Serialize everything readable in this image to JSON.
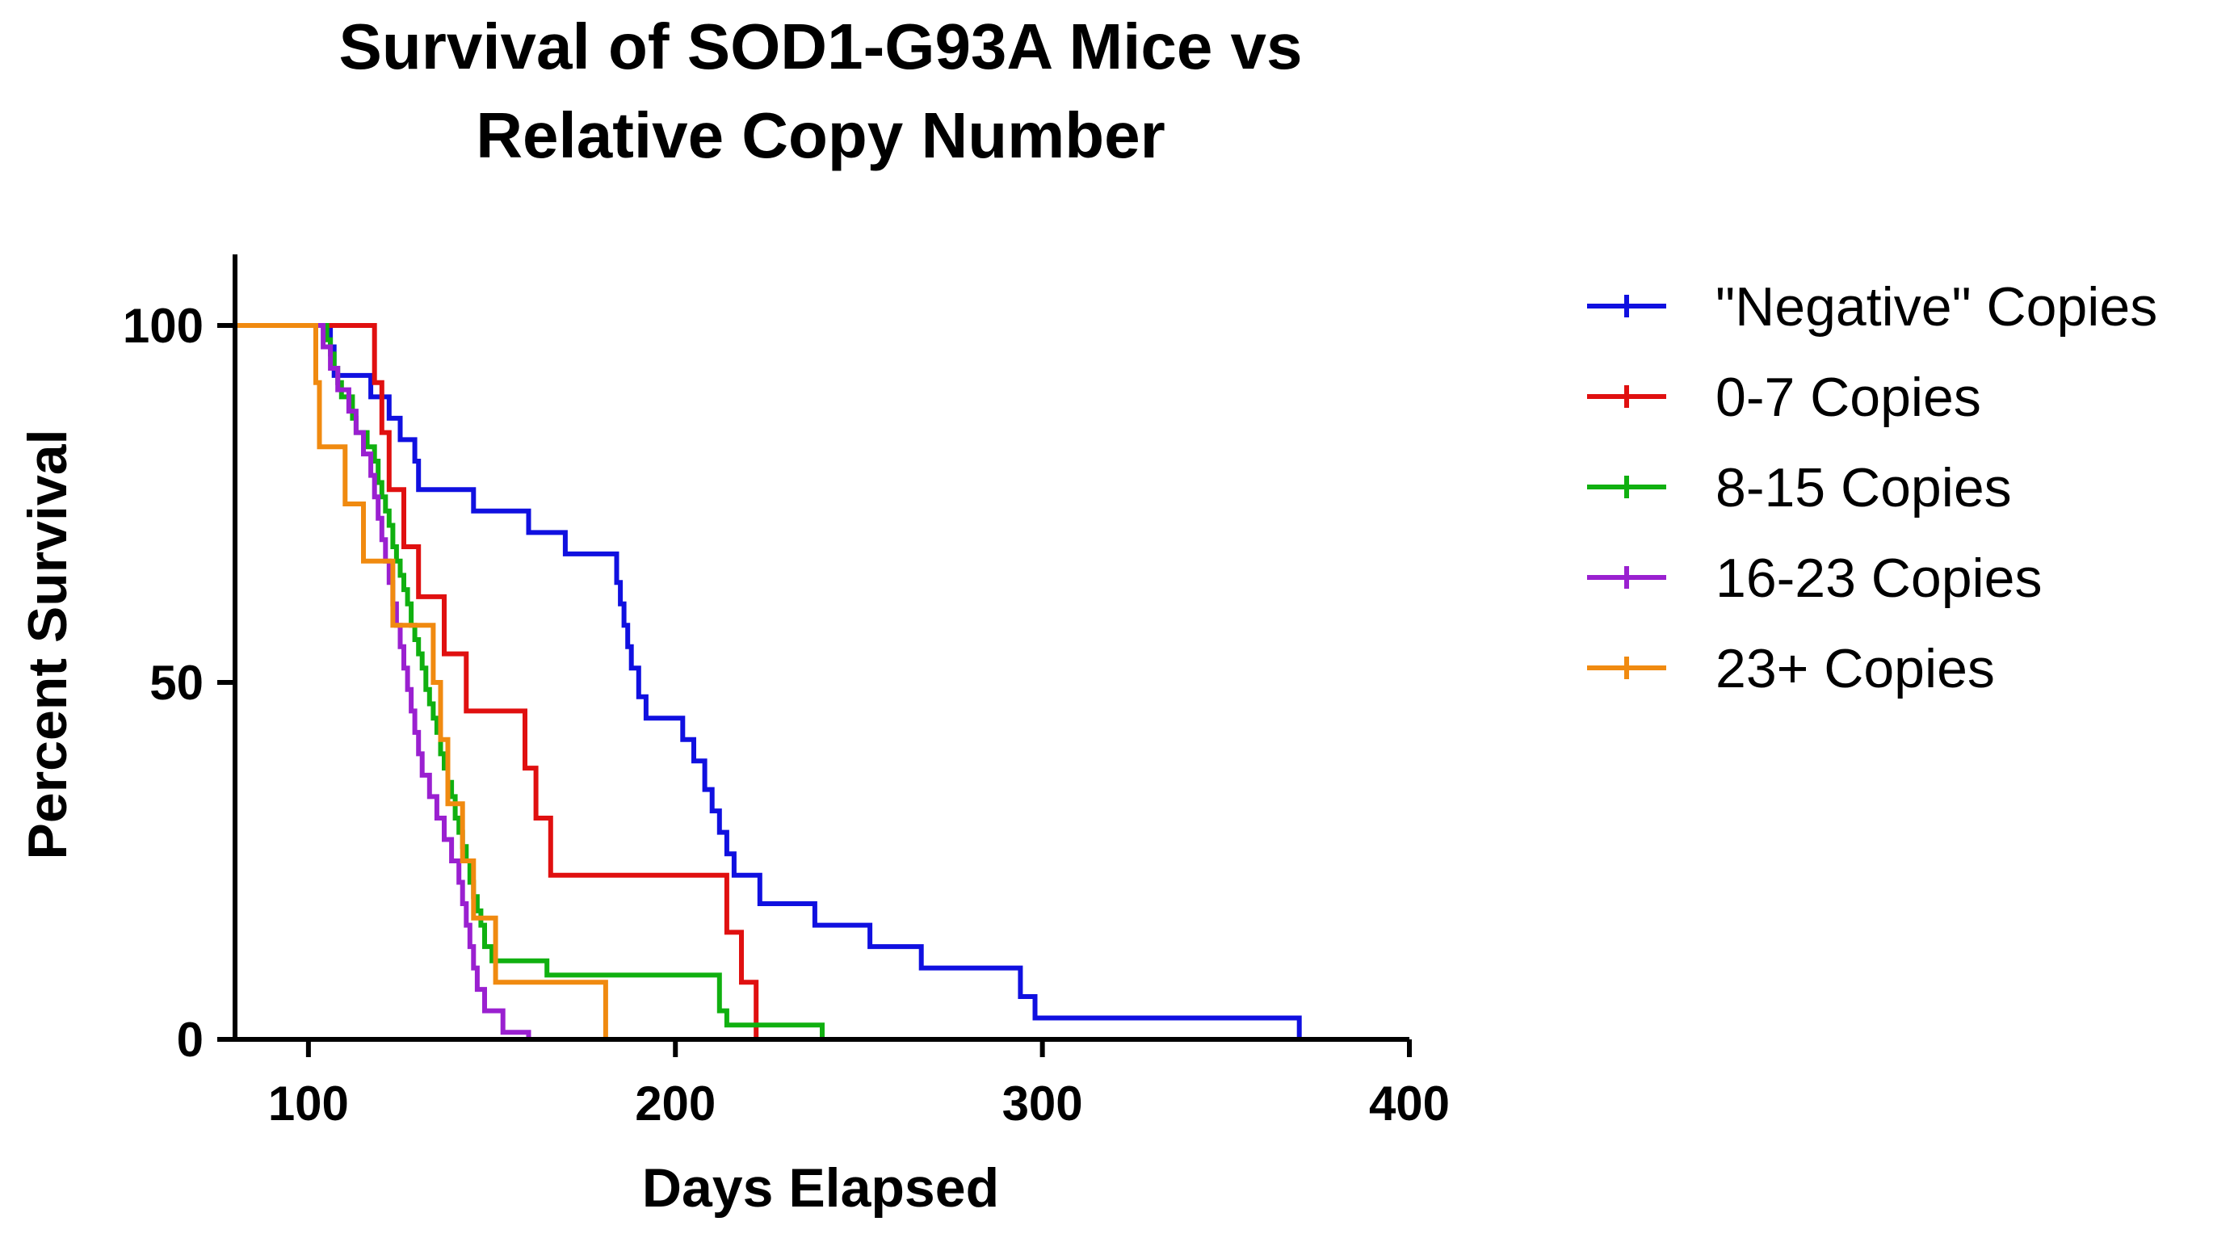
{
  "chart_data": {
    "type": "line",
    "step": "kaplan-meier",
    "title_lines": [
      "Survival of SOD1-G93A Mice vs",
      "Relative  Copy Number"
    ],
    "xlabel": "Days Elapsed",
    "ylabel": "Percent Survival",
    "xlim": [
      80,
      400
    ],
    "ylim": [
      0,
      110
    ],
    "xticks": [
      100,
      200,
      300,
      400
    ],
    "xtick_labels": [
      "100",
      "200",
      "300",
      "400"
    ],
    "yticks": [
      0,
      50,
      100
    ],
    "ytick_labels": [
      "0",
      "50",
      "100"
    ],
    "grid": false,
    "legend_position": "right",
    "series": [
      {
        "name": "\"Negative\" Copies",
        "color": "#1010e0",
        "points": [
          [
            80,
            100
          ],
          [
            106,
            100
          ],
          [
            106,
            97
          ],
          [
            107,
            97
          ],
          [
            107,
            93
          ],
          [
            117,
            93
          ],
          [
            117,
            90
          ],
          [
            122,
            90
          ],
          [
            122,
            87
          ],
          [
            125,
            87
          ],
          [
            125,
            84
          ],
          [
            129,
            84
          ],
          [
            129,
            81
          ],
          [
            130,
            81
          ],
          [
            130,
            77
          ],
          [
            145,
            77
          ],
          [
            145,
            74
          ],
          [
            160,
            74
          ],
          [
            160,
            71
          ],
          [
            170,
            71
          ],
          [
            170,
            68
          ],
          [
            184,
            68
          ],
          [
            184,
            64
          ],
          [
            185,
            64
          ],
          [
            185,
            61
          ],
          [
            186,
            61
          ],
          [
            186,
            58
          ],
          [
            187,
            58
          ],
          [
            187,
            55
          ],
          [
            188,
            55
          ],
          [
            188,
            52
          ],
          [
            190,
            52
          ],
          [
            190,
            48
          ],
          [
            192,
            48
          ],
          [
            192,
            45
          ],
          [
            202,
            45
          ],
          [
            202,
            42
          ],
          [
            205,
            42
          ],
          [
            205,
            39
          ],
          [
            208,
            39
          ],
          [
            208,
            35
          ],
          [
            210,
            35
          ],
          [
            210,
            32
          ],
          [
            212,
            32
          ],
          [
            212,
            29
          ],
          [
            214,
            29
          ],
          [
            214,
            26
          ],
          [
            216,
            26
          ],
          [
            216,
            23
          ],
          [
            223,
            23
          ],
          [
            223,
            19
          ],
          [
            238,
            19
          ],
          [
            238,
            16
          ],
          [
            253,
            16
          ],
          [
            253,
            13
          ],
          [
            267,
            13
          ],
          [
            267,
            10
          ],
          [
            294,
            10
          ],
          [
            294,
            6
          ],
          [
            298,
            6
          ],
          [
            298,
            3
          ],
          [
            370,
            3
          ],
          [
            370,
            0
          ]
        ]
      },
      {
        "name": "0-7 Copies",
        "color": "#e01010",
        "points": [
          [
            80,
            100
          ],
          [
            118,
            100
          ],
          [
            118,
            92
          ],
          [
            120,
            92
          ],
          [
            120,
            85
          ],
          [
            122,
            85
          ],
          [
            122,
            77
          ],
          [
            126,
            77
          ],
          [
            126,
            69
          ],
          [
            130,
            69
          ],
          [
            130,
            62
          ],
          [
            137,
            62
          ],
          [
            137,
            54
          ],
          [
            143,
            54
          ],
          [
            143,
            46
          ],
          [
            159,
            46
          ],
          [
            159,
            38
          ],
          [
            162,
            38
          ],
          [
            162,
            31
          ],
          [
            166,
            31
          ],
          [
            166,
            23
          ],
          [
            214,
            23
          ],
          [
            214,
            15
          ],
          [
            218,
            15
          ],
          [
            218,
            8
          ],
          [
            222,
            8
          ],
          [
            222,
            0
          ]
        ]
      },
      {
        "name": "8-15 Copies",
        "color": "#10b010",
        "points": [
          [
            80,
            100
          ],
          [
            105,
            100
          ],
          [
            105,
            98
          ],
          [
            106,
            98
          ],
          [
            106,
            96
          ],
          [
            107,
            96
          ],
          [
            107,
            94
          ],
          [
            108,
            94
          ],
          [
            108,
            92
          ],
          [
            109,
            92
          ],
          [
            109,
            90
          ],
          [
            112,
            90
          ],
          [
            112,
            87
          ],
          [
            113,
            87
          ],
          [
            113,
            85
          ],
          [
            116,
            85
          ],
          [
            116,
            83
          ],
          [
            118,
            83
          ],
          [
            118,
            81
          ],
          [
            119,
            81
          ],
          [
            119,
            78
          ],
          [
            120,
            78
          ],
          [
            120,
            76
          ],
          [
            121,
            76
          ],
          [
            121,
            74
          ],
          [
            122,
            74
          ],
          [
            122,
            72
          ],
          [
            123,
            72
          ],
          [
            123,
            69
          ],
          [
            124,
            69
          ],
          [
            124,
            67
          ],
          [
            125,
            67
          ],
          [
            125,
            65
          ],
          [
            126,
            65
          ],
          [
            126,
            63
          ],
          [
            127,
            63
          ],
          [
            127,
            61
          ],
          [
            128,
            61
          ],
          [
            128,
            58
          ],
          [
            129,
            58
          ],
          [
            129,
            56
          ],
          [
            130,
            56
          ],
          [
            130,
            54
          ],
          [
            131,
            54
          ],
          [
            131,
            52
          ],
          [
            132,
            52
          ],
          [
            132,
            49
          ],
          [
            133,
            49
          ],
          [
            133,
            47
          ],
          [
            134,
            47
          ],
          [
            134,
            45
          ],
          [
            135,
            45
          ],
          [
            135,
            43
          ],
          [
            136,
            43
          ],
          [
            136,
            40
          ],
          [
            137,
            40
          ],
          [
            137,
            38
          ],
          [
            138,
            38
          ],
          [
            138,
            36
          ],
          [
            139,
            36
          ],
          [
            139,
            34
          ],
          [
            140,
            34
          ],
          [
            140,
            31
          ],
          [
            141,
            31
          ],
          [
            141,
            29
          ],
          [
            142,
            29
          ],
          [
            142,
            27
          ],
          [
            143,
            27
          ],
          [
            143,
            25
          ],
          [
            144,
            25
          ],
          [
            144,
            22
          ],
          [
            145,
            22
          ],
          [
            145,
            20
          ],
          [
            146,
            20
          ],
          [
            146,
            18
          ],
          [
            147,
            18
          ],
          [
            147,
            16
          ],
          [
            148,
            16
          ],
          [
            148,
            13
          ],
          [
            150,
            13
          ],
          [
            150,
            11
          ],
          [
            165,
            11
          ],
          [
            165,
            9
          ],
          [
            212,
            9
          ],
          [
            212,
            4
          ],
          [
            214,
            4
          ],
          [
            214,
            2
          ],
          [
            240,
            2
          ],
          [
            240,
            0
          ]
        ]
      },
      {
        "name": "16-23 Copies",
        "color": "#9a20d0",
        "points": [
          [
            80,
            100
          ],
          [
            104,
            100
          ],
          [
            104,
            97
          ],
          [
            106,
            97
          ],
          [
            106,
            94
          ],
          [
            108,
            94
          ],
          [
            108,
            91
          ],
          [
            111,
            91
          ],
          [
            111,
            88
          ],
          [
            113,
            88
          ],
          [
            113,
            85
          ],
          [
            115,
            85
          ],
          [
            115,
            82
          ],
          [
            117,
            82
          ],
          [
            117,
            79
          ],
          [
            118,
            79
          ],
          [
            118,
            76
          ],
          [
            119,
            76
          ],
          [
            119,
            73
          ],
          [
            120,
            73
          ],
          [
            120,
            70
          ],
          [
            121,
            70
          ],
          [
            121,
            67
          ],
          [
            122,
            67
          ],
          [
            122,
            64
          ],
          [
            123,
            64
          ],
          [
            123,
            61
          ],
          [
            124,
            61
          ],
          [
            124,
            58
          ],
          [
            125,
            58
          ],
          [
            125,
            55
          ],
          [
            126,
            55
          ],
          [
            126,
            52
          ],
          [
            127,
            52
          ],
          [
            127,
            49
          ],
          [
            128,
            49
          ],
          [
            128,
            46
          ],
          [
            129,
            46
          ],
          [
            129,
            43
          ],
          [
            130,
            43
          ],
          [
            130,
            40
          ],
          [
            131,
            40
          ],
          [
            131,
            37
          ],
          [
            133,
            37
          ],
          [
            133,
            34
          ],
          [
            135,
            34
          ],
          [
            135,
            31
          ],
          [
            137,
            31
          ],
          [
            137,
            28
          ],
          [
            139,
            28
          ],
          [
            139,
            25
          ],
          [
            141,
            25
          ],
          [
            141,
            22
          ],
          [
            142,
            22
          ],
          [
            142,
            19
          ],
          [
            143,
            19
          ],
          [
            143,
            16
          ],
          [
            144,
            16
          ],
          [
            144,
            13
          ],
          [
            145,
            13
          ],
          [
            145,
            10
          ],
          [
            146,
            10
          ],
          [
            146,
            7
          ],
          [
            148,
            7
          ],
          [
            148,
            4
          ],
          [
            153,
            4
          ],
          [
            153,
            1
          ],
          [
            160,
            1
          ],
          [
            160,
            0
          ]
        ]
      },
      {
        "name": "23+ Copies",
        "color": "#f08a10",
        "points": [
          [
            80,
            100
          ],
          [
            102,
            100
          ],
          [
            102,
            92
          ],
          [
            103,
            92
          ],
          [
            103,
            83
          ],
          [
            110,
            83
          ],
          [
            110,
            75
          ],
          [
            115,
            75
          ],
          [
            115,
            67
          ],
          [
            123,
            67
          ],
          [
            123,
            58
          ],
          [
            134,
            58
          ],
          [
            134,
            50
          ],
          [
            136,
            50
          ],
          [
            136,
            42
          ],
          [
            138,
            42
          ],
          [
            138,
            33
          ],
          [
            142,
            33
          ],
          [
            142,
            25
          ],
          [
            145,
            25
          ],
          [
            145,
            17
          ],
          [
            151,
            17
          ],
          [
            151,
            8
          ],
          [
            181,
            8
          ],
          [
            181,
            0
          ]
        ]
      }
    ]
  }
}
